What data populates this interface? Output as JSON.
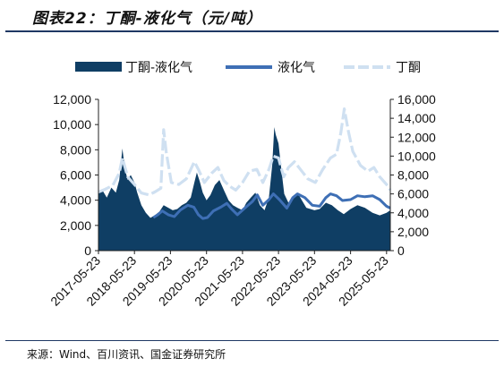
{
  "header": {
    "title": "图表22：丁酮-液化气（元/吨）"
  },
  "footer": {
    "source": "来源：Wind、百川资讯、国金证券研究所"
  },
  "chart_data": {
    "type": "area",
    "title": "图表22：丁酮-液化气（元/吨）",
    "x_range": [
      "2017-05-23",
      "2025-06-30"
    ],
    "x_tick_labels": [
      "2017-05-23",
      "2018-05-23",
      "2019-05-23",
      "2020-05-23",
      "2021-05-23",
      "2022-05-23",
      "2023-05-23",
      "2024-05-23",
      "2025-05-23"
    ],
    "y_left": {
      "ticks": [
        "0",
        "2,000",
        "4,000",
        "6,000",
        "8,000",
        "10,000",
        "12,000"
      ],
      "range": [
        0,
        12000
      ]
    },
    "y_right": {
      "ticks": [
        "0",
        "2,000",
        "4,000",
        "6,000",
        "8,000",
        "10,000",
        "12,000",
        "14,000",
        "16,000"
      ],
      "range": [
        0,
        16000
      ]
    },
    "legend_position": "top",
    "grid": false,
    "series": [
      {
        "name": "丁酮-液化气",
        "kind": "area",
        "axis": "left",
        "color": "#0f3e64",
        "points": [
          [
            "2017-05-23",
            4500
          ],
          [
            "2017-07-01",
            4800
          ],
          [
            "2017-08-15",
            4200
          ],
          [
            "2017-10-01",
            5000
          ],
          [
            "2017-11-15",
            4600
          ],
          [
            "2017-12-20",
            5600
          ],
          [
            "2018-01-20",
            8100
          ],
          [
            "2018-02-15",
            6500
          ],
          [
            "2018-03-15",
            5600
          ],
          [
            "2018-04-15",
            6000
          ],
          [
            "2018-05-23",
            5400
          ],
          [
            "2018-06-20",
            4600
          ],
          [
            "2018-08-01",
            3600
          ],
          [
            "2018-09-15",
            3000
          ],
          [
            "2018-11-01",
            2600
          ],
          [
            "2018-12-15",
            2800
          ],
          [
            "2019-02-01",
            3100
          ],
          [
            "2019-03-15",
            3600
          ],
          [
            "2019-05-01",
            3400
          ],
          [
            "2019-06-15",
            3200
          ],
          [
            "2019-08-01",
            3300
          ],
          [
            "2019-09-15",
            3600
          ],
          [
            "2019-11-01",
            3800
          ],
          [
            "2019-12-15",
            4200
          ],
          [
            "2020-01-20",
            5400
          ],
          [
            "2020-02-15",
            6200
          ],
          [
            "2020-03-15",
            5500
          ],
          [
            "2020-04-15",
            4600
          ],
          [
            "2020-05-23",
            4000
          ],
          [
            "2020-07-01",
            4400
          ],
          [
            "2020-08-15",
            5200
          ],
          [
            "2020-10-01",
            5600
          ],
          [
            "2020-11-15",
            4800
          ],
          [
            "2021-01-01",
            4000
          ],
          [
            "2021-02-15",
            3600
          ],
          [
            "2021-04-01",
            3400
          ],
          [
            "2021-05-23",
            3200
          ],
          [
            "2021-07-01",
            3800
          ],
          [
            "2021-08-15",
            4200
          ],
          [
            "2021-10-01",
            4600
          ],
          [
            "2021-11-15",
            3600
          ],
          [
            "2022-01-01",
            3200
          ],
          [
            "2022-02-15",
            4200
          ],
          [
            "2022-03-20",
            6800
          ],
          [
            "2022-04-10",
            9800
          ],
          [
            "2022-04-25",
            9200
          ],
          [
            "2022-05-23",
            8500
          ],
          [
            "2022-06-20",
            6500
          ],
          [
            "2022-07-20",
            4500
          ],
          [
            "2022-09-01",
            3800
          ],
          [
            "2022-10-15",
            4200
          ],
          [
            "2022-12-01",
            4600
          ],
          [
            "2023-01-15",
            4000
          ],
          [
            "2023-03-01",
            3400
          ],
          [
            "2023-05-23",
            3200
          ],
          [
            "2023-07-15",
            3300
          ],
          [
            "2023-09-15",
            3800
          ],
          [
            "2023-11-15",
            3600
          ],
          [
            "2024-01-15",
            3200
          ],
          [
            "2024-03-15",
            2900
          ],
          [
            "2024-05-23",
            3300
          ],
          [
            "2024-08-01",
            3600
          ],
          [
            "2024-10-15",
            3400
          ],
          [
            "2025-01-01",
            3000
          ],
          [
            "2025-03-15",
            2800
          ],
          [
            "2025-05-23",
            3000
          ],
          [
            "2025-06-30",
            3200
          ]
        ]
      },
      {
        "name": "液化气",
        "kind": "line",
        "axis": "right",
        "color": "#3e6fb5",
        "points": [
          [
            "2018-12-01",
            3500
          ],
          [
            "2019-01-15",
            3800
          ],
          [
            "2019-03-01",
            4200
          ],
          [
            "2019-05-01",
            3800
          ],
          [
            "2019-07-01",
            3600
          ],
          [
            "2019-09-01",
            4300
          ],
          [
            "2019-11-15",
            4800
          ],
          [
            "2020-01-15",
            4600
          ],
          [
            "2020-03-01",
            3800
          ],
          [
            "2020-04-15",
            3400
          ],
          [
            "2020-06-01",
            3500
          ],
          [
            "2020-08-01",
            4200
          ],
          [
            "2020-10-15",
            4600
          ],
          [
            "2020-12-15",
            5000
          ],
          [
            "2021-02-01",
            4400
          ],
          [
            "2021-04-01",
            3800
          ],
          [
            "2021-06-15",
            4500
          ],
          [
            "2021-09-01",
            5200
          ],
          [
            "2021-10-20",
            5900
          ],
          [
            "2021-12-15",
            4800
          ],
          [
            "2022-02-15",
            5400
          ],
          [
            "2022-04-01",
            6000
          ],
          [
            "2022-06-01",
            5400
          ],
          [
            "2022-08-15",
            4500
          ],
          [
            "2022-10-15",
            5600
          ],
          [
            "2022-12-01",
            6000
          ],
          [
            "2023-02-15",
            5600
          ],
          [
            "2023-05-01",
            4800
          ],
          [
            "2023-07-15",
            4700
          ],
          [
            "2023-09-15",
            5600
          ],
          [
            "2023-11-01",
            6000
          ],
          [
            "2024-01-01",
            5800
          ],
          [
            "2024-03-01",
            5300
          ],
          [
            "2024-05-23",
            5400
          ],
          [
            "2024-08-01",
            5800
          ],
          [
            "2024-10-15",
            5700
          ],
          [
            "2025-01-01",
            5800
          ],
          [
            "2025-03-15",
            5400
          ],
          [
            "2025-05-23",
            4700
          ],
          [
            "2025-06-30",
            4500
          ]
        ]
      },
      {
        "name": "丁酮",
        "kind": "line",
        "axis": "right",
        "color": "#cfe0f1",
        "points": [
          [
            "2017-05-23",
            6200
          ],
          [
            "2017-08-01",
            6500
          ],
          [
            "2017-10-15",
            6900
          ],
          [
            "2017-12-20",
            8200
          ],
          [
            "2018-01-20",
            9800
          ],
          [
            "2018-03-15",
            7800
          ],
          [
            "2018-05-23",
            7000
          ],
          [
            "2018-08-01",
            6100
          ],
          [
            "2018-10-15",
            5900
          ],
          [
            "2018-12-15",
            6200
          ],
          [
            "2019-02-15",
            6600
          ],
          [
            "2019-03-15",
            12800
          ],
          [
            "2019-04-10",
            10400
          ],
          [
            "2019-06-01",
            7200
          ],
          [
            "2019-08-15",
            7000
          ],
          [
            "2019-11-01",
            7600
          ],
          [
            "2020-01-20",
            9400
          ],
          [
            "2020-03-01",
            8600
          ],
          [
            "2020-05-01",
            7200
          ],
          [
            "2020-07-15",
            8200
          ],
          [
            "2020-09-15",
            8800
          ],
          [
            "2020-11-15",
            7400
          ],
          [
            "2021-01-15",
            6800
          ],
          [
            "2021-03-15",
            6400
          ],
          [
            "2021-05-23",
            7200
          ],
          [
            "2021-08-01",
            8400
          ],
          [
            "2021-10-15",
            8600
          ],
          [
            "2021-12-15",
            7200
          ],
          [
            "2022-02-15",
            8600
          ],
          [
            "2022-04-01",
            10000
          ],
          [
            "2022-05-23",
            9800
          ],
          [
            "2022-07-15",
            7800
          ],
          [
            "2022-09-01",
            8800
          ],
          [
            "2022-11-01",
            9400
          ],
          [
            "2023-01-15",
            8400
          ],
          [
            "2023-03-15",
            7600
          ],
          [
            "2023-06-01",
            7200
          ],
          [
            "2023-08-15",
            8600
          ],
          [
            "2023-11-01",
            9800
          ],
          [
            "2024-01-01",
            10200
          ],
          [
            "2024-02-15",
            12500
          ],
          [
            "2024-03-20",
            15000
          ],
          [
            "2024-05-01",
            12600
          ],
          [
            "2024-06-15",
            10500
          ],
          [
            "2024-09-01",
            9000
          ],
          [
            "2024-11-15",
            8400
          ],
          [
            "2025-01-15",
            8800
          ],
          [
            "2025-03-15",
            7800
          ],
          [
            "2025-05-23",
            7000
          ],
          [
            "2025-06-30",
            6400
          ]
        ]
      }
    ]
  }
}
